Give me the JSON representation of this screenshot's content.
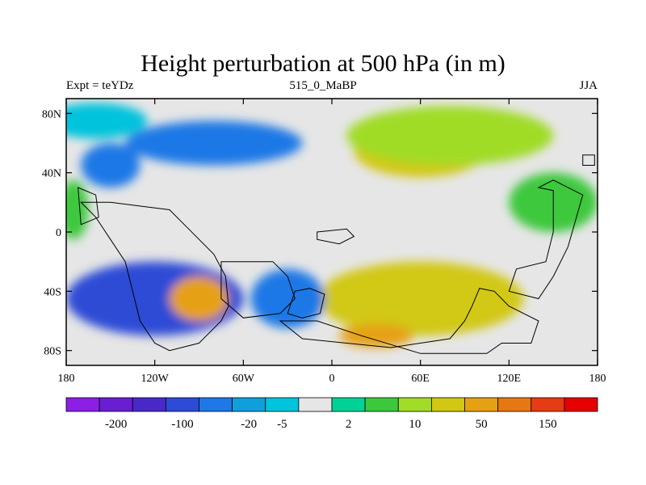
{
  "header": {
    "title": "Height perturbation at 500 hPa (in m)",
    "left_label": "Expt = teYDz",
    "center_label": "515_0_MaBP",
    "right_label": "JJA"
  },
  "colors": {
    "levels": [
      "#8c1ee6",
      "#6a1ed2",
      "#4a28c8",
      "#2d4bd6",
      "#1e78e6",
      "#0fa0dc",
      "#00c3dc",
      "#e6e6e6",
      "#00d296",
      "#3cc83c",
      "#a0dc28",
      "#d2c814",
      "#e6a014",
      "#e67814",
      "#e63c14",
      "#e60000"
    ]
  },
  "chart_data": {
    "type": "heatmap",
    "x_ticks": [
      "180",
      "120W",
      "60W",
      "0",
      "60E",
      "120E",
      "180"
    ],
    "x_tick_values": [
      -180,
      -120,
      -60,
      0,
      60,
      120,
      180
    ],
    "y_ticks": [
      "80N",
      "40N",
      "0",
      "40S",
      "80S"
    ],
    "y_tick_values": [
      80,
      40,
      0,
      -40,
      -80
    ],
    "xlim": [
      -180,
      180
    ],
    "ylim": [
      -90,
      90
    ],
    "colorbar_labels": [
      "-200",
      "-100",
      "-20",
      "-5",
      "2",
      "10",
      "50",
      "150"
    ],
    "colorbar_label_boundaries": [
      1,
      3,
      5,
      6,
      8,
      10,
      12,
      14
    ],
    "regions": [
      {
        "name": "Arctic cyan",
        "level": 6,
        "lon": -160,
        "lat": 75,
        "rx": 35,
        "ry": 12
      },
      {
        "name": "N Atlantic blue",
        "level": 4,
        "lon": -80,
        "lat": 60,
        "rx": 60,
        "ry": 15
      },
      {
        "name": "N Pacific low",
        "level": 4,
        "lon": -150,
        "lat": 45,
        "rx": 20,
        "ry": 15
      },
      {
        "name": "Eurasia high",
        "level": 11,
        "lon": 60,
        "lat": 55,
        "rx": 45,
        "ry": 18
      },
      {
        "name": "Siberia high",
        "level": 10,
        "lon": 80,
        "lat": 65,
        "rx": 70,
        "ry": 20
      },
      {
        "name": "Tropical W Pacific",
        "level": 9,
        "lon": 150,
        "lat": 20,
        "rx": 30,
        "ry": 20
      },
      {
        "name": "East Pacific green",
        "level": 9,
        "lon": -175,
        "lat": 15,
        "rx": 10,
        "ry": 20
      },
      {
        "name": "S Pacific blue",
        "level": 3,
        "lon": -120,
        "lat": -45,
        "rx": 60,
        "ry": 25
      },
      {
        "name": "S Pacific high",
        "level": 12,
        "lon": -90,
        "lat": -45,
        "rx": 20,
        "ry": 15
      },
      {
        "name": "S Indian high",
        "level": 11,
        "lon": 60,
        "lat": -45,
        "rx": 70,
        "ry": 25
      },
      {
        "name": "S Atlantic blue",
        "level": 4,
        "lon": -30,
        "lat": -45,
        "rx": 25,
        "ry": 20
      },
      {
        "name": "Antarctic high",
        "level": 12,
        "lon": 30,
        "lat": -70,
        "rx": 25,
        "ry": 8
      }
    ]
  }
}
